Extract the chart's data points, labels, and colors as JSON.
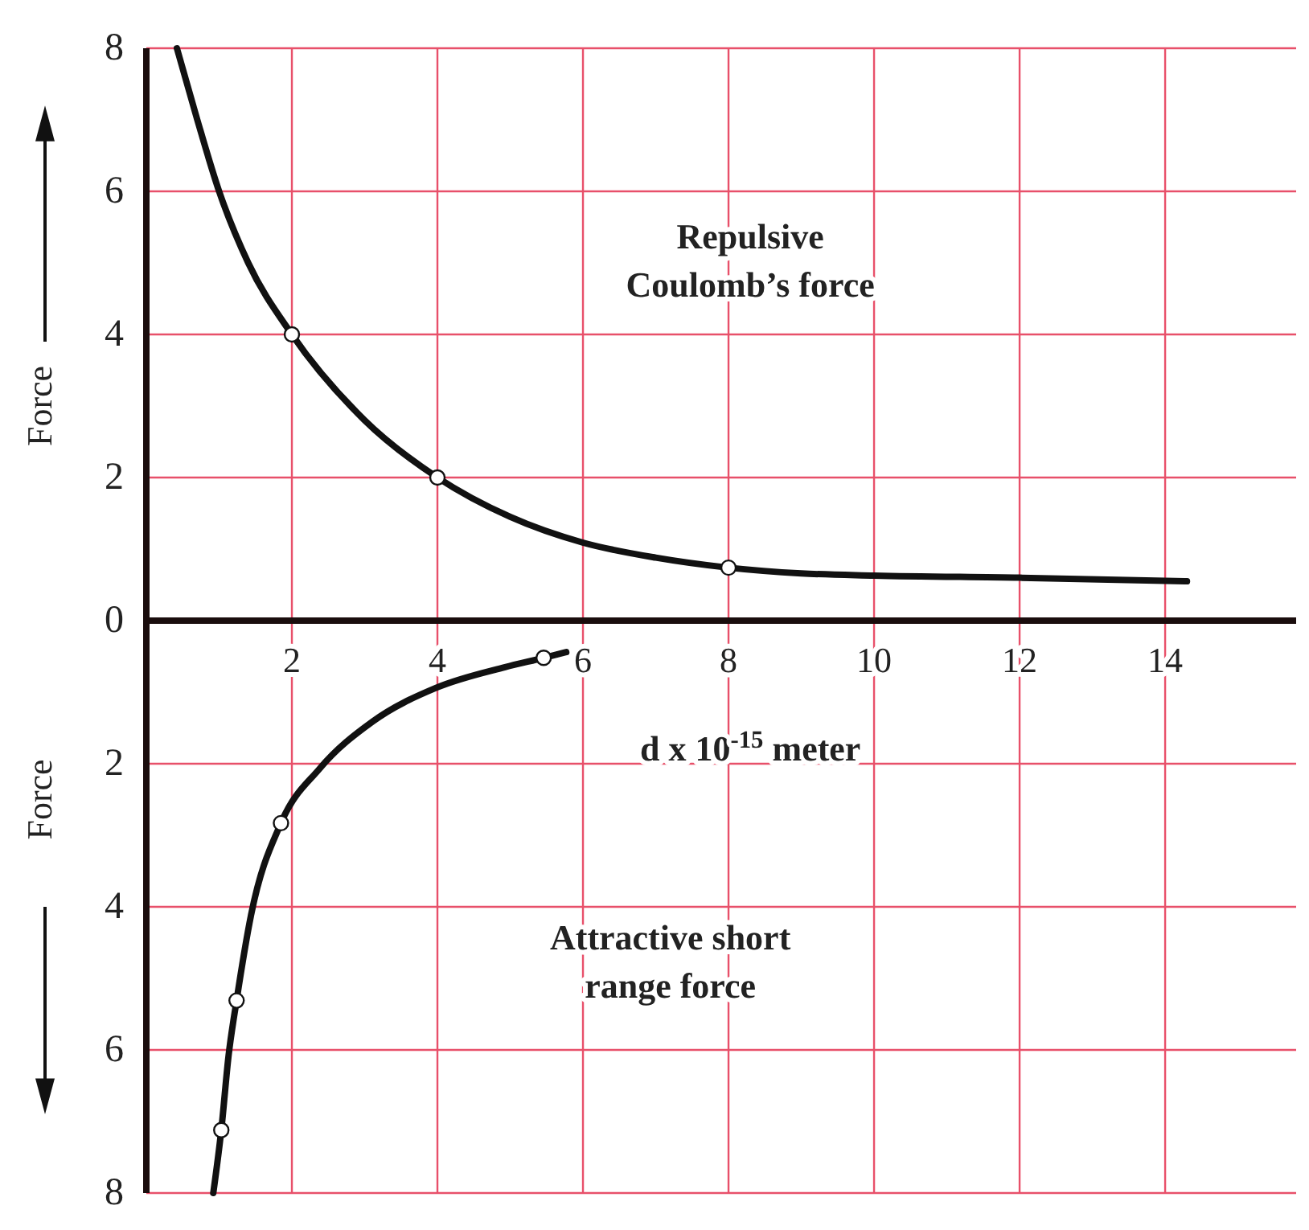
{
  "chart_data": {
    "type": "line",
    "xlabel": "d x 10$^{-15}$ meter",
    "ylabel": "Force",
    "annotations": [
      "Repulsive\nCoulomb’s force",
      "Attractive short\nrange force",
      "Force"
    ],
    "xlim": [
      0,
      15.8
    ],
    "ylim": [
      -8,
      8
    ],
    "xticks": [
      2,
      4,
      6,
      8,
      10,
      12,
      14
    ],
    "yticks": [
      8,
      6,
      4,
      2,
      0,
      {
        "value": -2,
        "label": "2"
      },
      {
        "value": -4,
        "label": "4"
      },
      {
        "value": -6,
        "label": "6"
      },
      {
        "value": -8,
        "label": "8"
      }
    ],
    "grid": true,
    "series": [
      {
        "type": "line",
        "color": "#111111",
        "marker": "none",
        "x": [
          0.42,
          0.7,
          1,
          1.4,
          2,
          3,
          4,
          5,
          6,
          7,
          8,
          9,
          10,
          12,
          14.3
        ],
        "values": [
          8,
          7,
          6,
          5,
          4,
          2.8,
          2,
          1.45,
          1.09,
          0.88,
          0.74,
          0.66,
          0.63,
          0.6,
          0.55
        ]
      },
      {
        "type": "line",
        "color": "#111111",
        "marker": "none",
        "x": [
          0.92,
          1.03,
          1.13,
          1.24,
          1.44,
          1.85,
          2.38,
          3.11,
          3.98,
          4.93,
          5.46,
          5.77
        ],
        "values": [
          -8,
          -7.12,
          -6.08,
          -5.31,
          -4.11,
          -2.83,
          -2.07,
          -1.41,
          -0.94,
          -0.65,
          -0.52,
          -0.44
        ]
      },
      {
        "type": "scatter",
        "color": "#111111",
        "marker": "circle",
        "x": [
          2,
          4,
          8
        ],
        "values": [
          4,
          2,
          0.74
        ]
      },
      {
        "type": "scatter",
        "color": "#111111",
        "marker": "circle",
        "x": [
          1.03,
          1.24,
          1.85,
          5.46
        ],
        "values": [
          -7.12,
          -5.31,
          -2.83,
          -0.52
        ]
      }
    ]
  }
}
